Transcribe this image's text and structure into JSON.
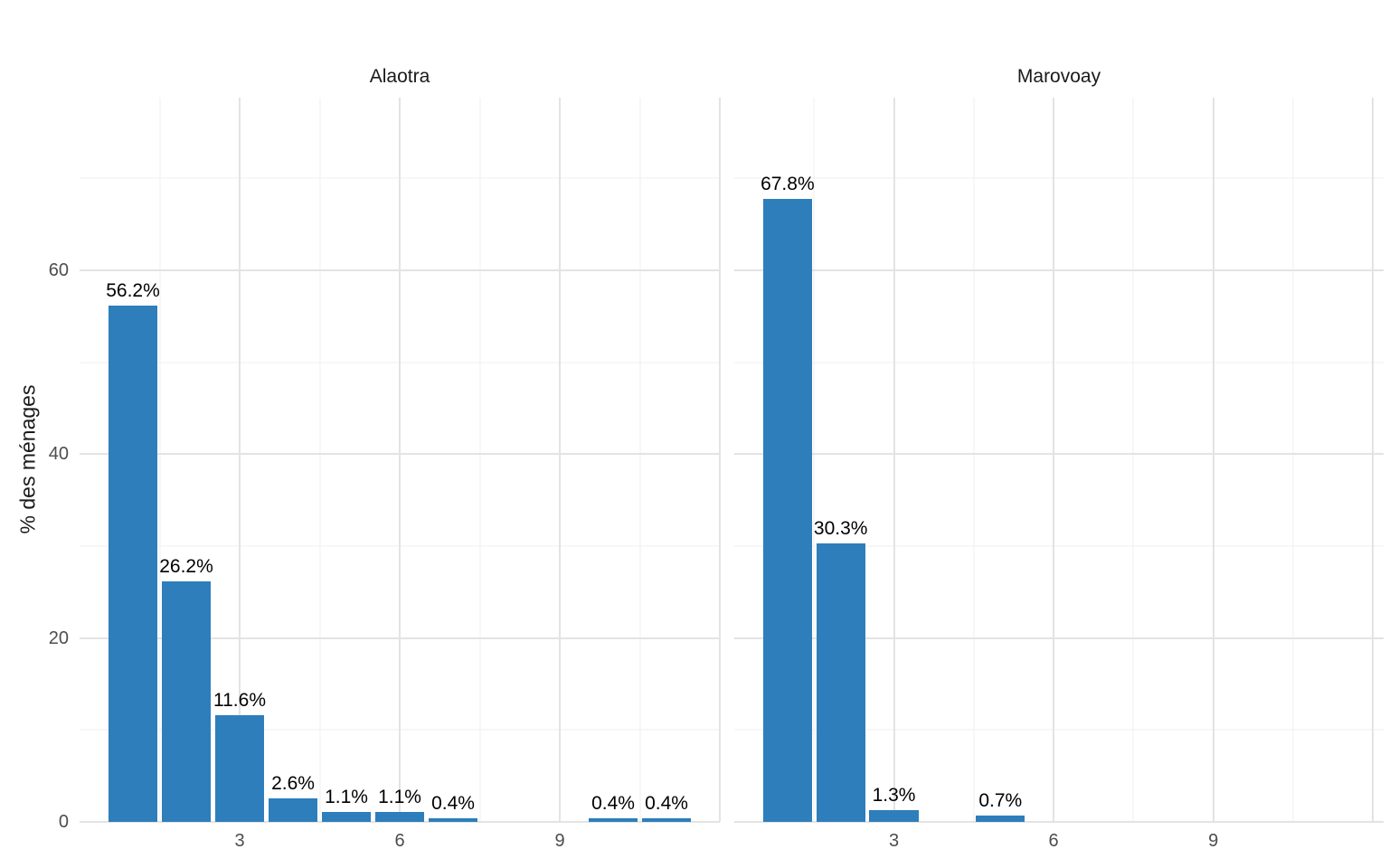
{
  "chart_data": {
    "type": "bar",
    "title": "",
    "xlabel": "",
    "ylabel": "% des ménages",
    "legend": "none",
    "facets": [
      {
        "title": "Alaotra",
        "x": [
          1,
          2,
          3,
          4,
          5,
          6,
          7,
          10,
          11
        ],
        "values": [
          56.2,
          26.2,
          11.6,
          2.6,
          1.1,
          1.1,
          0.4,
          0.4,
          0.4
        ],
        "labels": [
          "56.2%",
          "26.2%",
          "11.6%",
          "2.6%",
          "1.1%",
          "1.1%",
          "0.4%",
          "0.4%",
          "0.4%"
        ],
        "xlim": [
          0,
          12
        ]
      },
      {
        "title": "Marovoay",
        "x": [
          1,
          2,
          3,
          5
        ],
        "values": [
          67.8,
          30.3,
          1.3,
          0.7
        ],
        "labels": [
          "67.8%",
          "30.3%",
          "1.3%",
          "0.7%"
        ],
        "xlim": [
          0,
          12.2
        ]
      }
    ],
    "x_ticks": [
      3,
      6,
      9
    ],
    "y_ticks": [
      0,
      20,
      40,
      60
    ],
    "ylim": [
      0,
      78.8
    ],
    "bar_width": 0.92,
    "bar_color": "#2e7ebc",
    "grid": {
      "x_major": [
        3,
        6,
        9,
        12
      ],
      "x_minor": [
        1.5,
        4.5,
        7.5,
        10.5
      ],
      "y_major": [
        0,
        20,
        40,
        60
      ],
      "y_minor": [
        10,
        30,
        50,
        70
      ]
    }
  }
}
